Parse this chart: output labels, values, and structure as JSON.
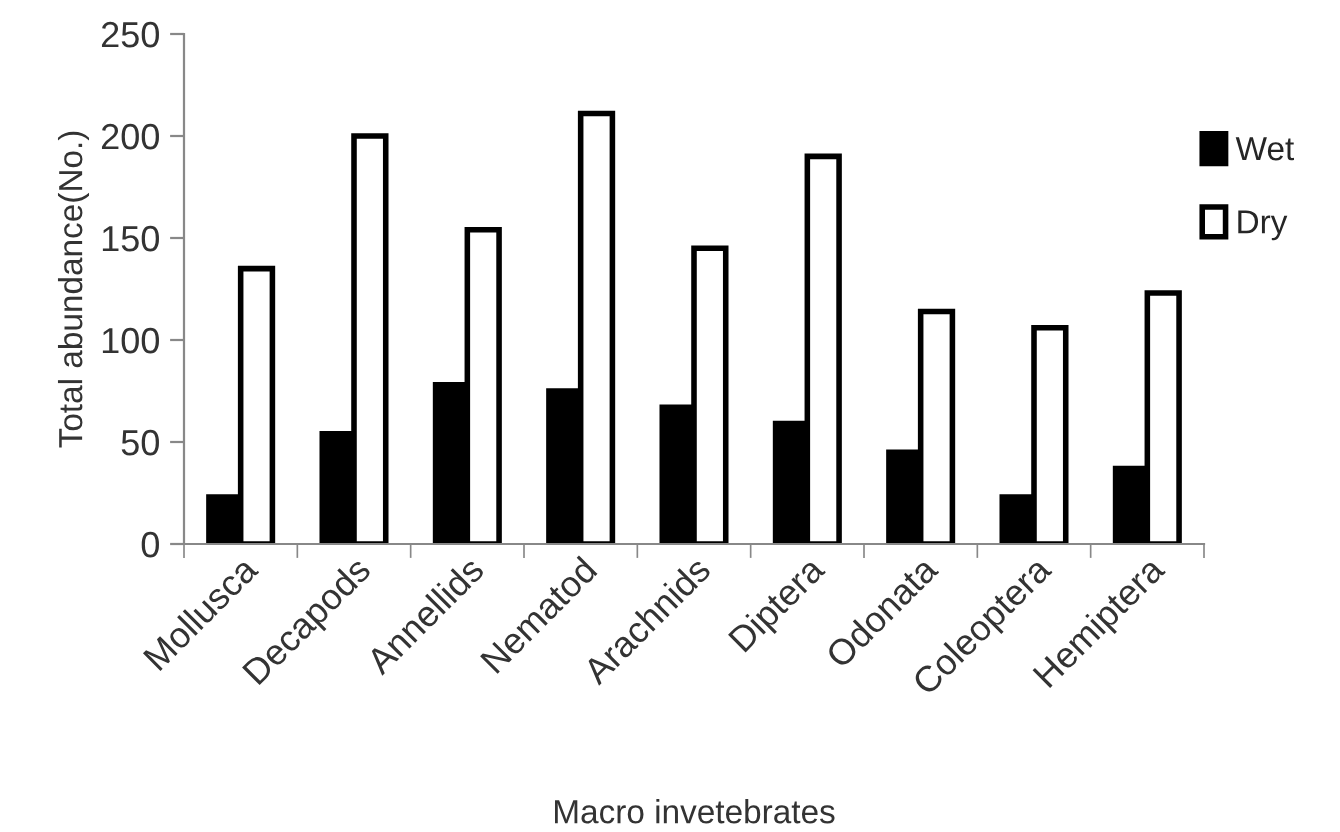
{
  "chart_data": {
    "type": "bar",
    "xlabel": "Macro invetebrates",
    "ylabel": "Total abundance(No.)",
    "categories": [
      "Mollusca",
      "Decapods",
      "Annellids",
      "Nematod",
      "Arachnids",
      "Diptera",
      "Odonata",
      "Coleoptera",
      "Hemiptera"
    ],
    "series": [
      {
        "name": "Wet",
        "color": "#000000",
        "values": [
          23,
          54,
          78,
          75,
          67,
          59,
          45,
          23,
          37
        ]
      },
      {
        "name": "Dry",
        "color": "#ffffff",
        "values": [
          135,
          200,
          154,
          211,
          145,
          190,
          114,
          106,
          123
        ]
      }
    ],
    "ylim": [
      0,
      250
    ],
    "yticks": [
      0,
      50,
      100,
      150,
      200,
      250
    ],
    "grid": false,
    "legend": "right"
  }
}
